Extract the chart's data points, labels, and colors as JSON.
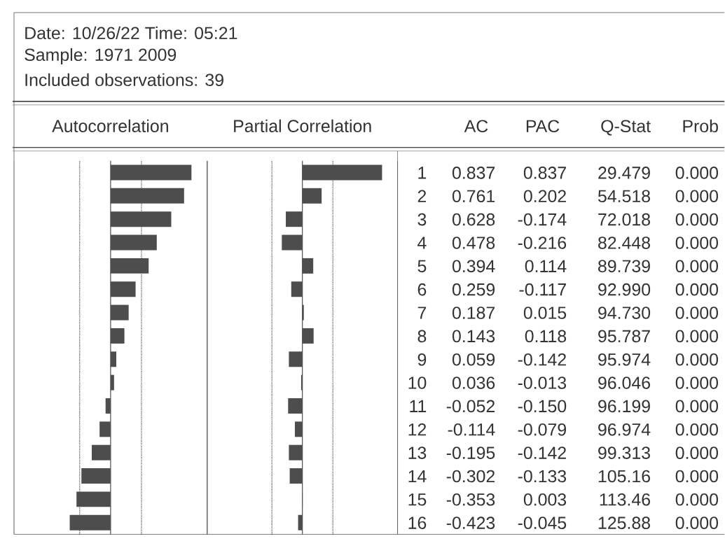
{
  "chart_data": [
    {
      "type": "bar",
      "orientation": "horizontal",
      "title": "Autocorrelation",
      "annotations": [
        "Date: 10/26/22  Time: 05:21",
        "Sample: 1971 2009",
        "Included observations: 39",
        "AC"
      ],
      "categories": [
        "1",
        "2",
        "3",
        "4",
        "5",
        "6",
        "7",
        "8",
        "9",
        "10",
        "11",
        "12",
        "13",
        "14",
        "15",
        "16"
      ],
      "values": [
        0.837,
        0.761,
        0.628,
        0.478,
        0.394,
        0.259,
        0.187,
        0.143,
        0.059,
        0.036,
        -0.052,
        -0.114,
        -0.195,
        -0.302,
        -0.353,
        -0.423
      ],
      "value_labels": [
        "0.837",
        "0.761",
        "0.628",
        "0.478",
        "0.394",
        "0.259",
        "0.187",
        "0.143",
        "0.059",
        "0.036",
        "-0.052",
        "-0.114",
        "-0.195",
        "-0.302",
        "-0.353",
        "-0.423"
      ],
      "color": "#4d4d4d",
      "xlim": [
        -1,
        1
      ],
      "ref_lines": [
        {
          "axis": "x",
          "value": 0,
          "line_style": "solid"
        },
        {
          "axis": "x",
          "value": -0.32,
          "line_style": "dotted"
        },
        {
          "axis": "x",
          "value": 0.32,
          "line_style": "dotted"
        }
      ]
    },
    {
      "type": "bar",
      "orientation": "horizontal",
      "title": "Partial Correlation",
      "annotations": [
        "PAC"
      ],
      "categories": [
        null,
        null,
        null,
        null,
        null,
        null,
        null,
        null,
        null,
        null,
        null,
        null,
        null,
        null,
        null,
        null
      ],
      "values": [
        0.837,
        0.202,
        -0.174,
        -0.216,
        0.114,
        -0.117,
        0.015,
        0.118,
        -0.142,
        -0.013,
        -0.15,
        -0.079,
        -0.142,
        -0.133,
        0.003,
        -0.045
      ],
      "value_labels": [
        "0.837",
        "0.202",
        "-0.174",
        "-0.216",
        "0.114",
        "-0.117",
        "0.015",
        "0.118",
        "-0.142",
        "-0.013",
        "-0.150",
        "-0.079",
        "-0.142",
        "-0.133",
        "0.003",
        "-0.045"
      ],
      "color": "#4d4d4d",
      "xlim": [
        -1,
        1
      ],
      "ref_lines": [
        {
          "axis": "x",
          "value": 0,
          "line_style": "solid"
        },
        {
          "axis": "x",
          "value": -0.32,
          "line_style": "dotted"
        },
        {
          "axis": "x",
          "value": 0.32,
          "line_style": "dotted"
        }
      ]
    },
    {
      "type": "other",
      "title": "Q-Stat",
      "annotations": [
        "29.479",
        "54.518",
        "72.018",
        "82.448",
        "89.739",
        "92.990",
        "94.730",
        "95.787",
        "95.974",
        "96.046",
        "96.199",
        "96.974",
        "99.313",
        "105.16",
        "113.46",
        "125.88"
      ]
    },
    {
      "type": "other",
      "title": "Prob",
      "annotations": [
        "0.000",
        "0.000",
        "0.000",
        "0.000",
        "0.000",
        "0.000",
        "0.000",
        "0.000",
        "0.000",
        "0.000",
        "0.000",
        "0.000",
        "0.000",
        "0.000",
        "0.000",
        "0.000"
      ]
    }
  ]
}
